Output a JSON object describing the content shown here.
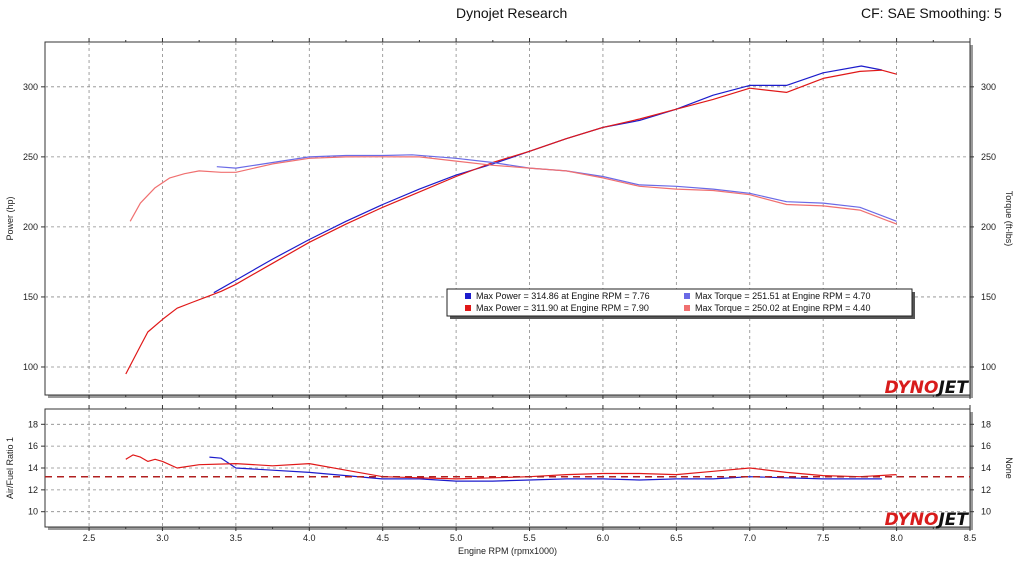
{
  "header": {
    "title": "Dynojet Research",
    "right": "CF: SAE Smoothing: 5"
  },
  "colors": {
    "run1": "#1c1ccc",
    "run2": "#e01818",
    "torque1": "#6a6ae6",
    "torque2": "#f07070",
    "target_line": "#b02020",
    "logo_red": "#d81c1c",
    "logo_black": "#111111"
  },
  "logo": {
    "text_red": "DYNO",
    "text_black": "JET"
  },
  "chart_data": [
    {
      "type": "line",
      "name": "power-torque",
      "xlim": [
        2.2,
        8.5
      ],
      "ylim": [
        80,
        332
      ],
      "y_ticks": [
        100,
        150,
        200,
        250,
        300
      ],
      "ylabel": "Power (hp)",
      "y2label": "Torque (ft-lbs)",
      "y2_ticks": [
        100,
        150,
        200,
        250,
        300
      ],
      "grid": true,
      "legend": {
        "placement": "center-right",
        "entries": [
          {
            "color": "#1c1ccc",
            "text": "Max Power = 314.86 at Engine RPM = 7.76"
          },
          {
            "color": "#6a6ae6",
            "text": "Max Torque = 251.51 at Engine RPM = 4.70"
          },
          {
            "color": "#e01818",
            "text": "Max Power = 311.90 at Engine RPM = 7.90"
          },
          {
            "color": "#f07070",
            "text": "Max Torque = 250.02 at Engine RPM = 4.40"
          }
        ]
      },
      "series": [
        {
          "color": "#1c1ccc",
          "x": [
            3.35,
            3.5,
            3.75,
            4.0,
            4.25,
            4.5,
            4.75,
            5.0,
            5.25,
            5.5,
            5.75,
            6.0,
            6.25,
            6.5,
            6.75,
            7.0,
            7.25,
            7.5,
            7.76,
            7.9
          ],
          "y": [
            153,
            162,
            177,
            191,
            204,
            216,
            227,
            237,
            245,
            254,
            263,
            271,
            276,
            284,
            294,
            301,
            301,
            310,
            314.9,
            312
          ]
        },
        {
          "color": "#e01818",
          "x": [
            2.75,
            2.8,
            2.85,
            2.9,
            3.0,
            3.1,
            3.2,
            3.3,
            3.4,
            3.5,
            3.75,
            4.0,
            4.25,
            4.5,
            4.75,
            5.0,
            5.25,
            5.5,
            5.75,
            6.0,
            6.25,
            6.5,
            6.75,
            7.0,
            7.25,
            7.5,
            7.75,
            7.9,
            8.0
          ],
          "y": [
            95,
            105,
            115,
            125,
            134,
            142,
            146,
            150,
            154,
            159,
            174,
            189,
            202,
            214,
            225,
            236,
            246,
            254,
            263,
            271,
            277,
            284,
            291,
            299,
            296,
            306,
            311,
            311.9,
            309
          ]
        },
        {
          "color": "#6a6ae6",
          "x": [
            3.37,
            3.5,
            3.75,
            4.0,
            4.25,
            4.5,
            4.7,
            5.0,
            5.25,
            5.5,
            5.75,
            6.0,
            6.25,
            6.5,
            6.75,
            7.0,
            7.25,
            7.5,
            7.75,
            8.0
          ],
          "y": [
            243,
            242,
            246,
            250,
            251,
            251,
            251.5,
            249,
            246,
            242,
            240,
            236,
            230,
            229,
            227,
            224,
            218,
            217,
            214,
            204
          ]
        },
        {
          "color": "#f07070",
          "x": [
            2.78,
            2.85,
            2.95,
            3.05,
            3.15,
            3.25,
            3.4,
            3.5,
            3.75,
            4.0,
            4.25,
            4.4,
            4.75,
            5.0,
            5.25,
            5.5,
            5.75,
            6.0,
            6.25,
            6.5,
            6.75,
            7.0,
            7.25,
            7.5,
            7.75,
            8.0
          ],
          "y": [
            204,
            217,
            228,
            235,
            238,
            240,
            239,
            239,
            245,
            249,
            250,
            250.02,
            250,
            247,
            244,
            242,
            240,
            235,
            229,
            227,
            226,
            223,
            216,
            215,
            212,
            202
          ]
        }
      ]
    },
    {
      "type": "line",
      "name": "air-fuel",
      "xlim": [
        2.2,
        8.5
      ],
      "ylim": [
        8.6,
        19.4
      ],
      "y_ticks": [
        10,
        12,
        14,
        16,
        18
      ],
      "ylabel": "Air/Fuel Ratio 1",
      "y2label": "None",
      "y2_ticks": [
        10,
        12,
        14,
        16,
        18
      ],
      "xlabel": "Engine RPM (rpmx1000)",
      "x_ticks": [
        2.5,
        3.0,
        3.5,
        4.0,
        4.5,
        5.0,
        5.5,
        6.0,
        6.5,
        7.0,
        7.5,
        8.0,
        8.5
      ],
      "reference_line": 13.2,
      "grid": true,
      "series": [
        {
          "color": "#1c1ccc",
          "x": [
            3.32,
            3.4,
            3.5,
            3.75,
            4.0,
            4.25,
            4.5,
            4.75,
            5.0,
            5.25,
            5.5,
            5.75,
            6.0,
            6.25,
            6.5,
            6.75,
            7.0,
            7.25,
            7.5,
            7.9
          ],
          "y": [
            15,
            14.9,
            14.0,
            13.8,
            13.6,
            13.3,
            13.0,
            13.0,
            12.8,
            12.8,
            12.9,
            13.0,
            13.0,
            12.9,
            13.0,
            13.0,
            13.2,
            13.1,
            13.0,
            13.0
          ]
        },
        {
          "color": "#e01818",
          "x": [
            2.75,
            2.8,
            2.85,
            2.9,
            2.95,
            3.0,
            3.1,
            3.25,
            3.5,
            3.75,
            4.0,
            4.25,
            4.5,
            4.75,
            5.0,
            5.25,
            5.5,
            5.75,
            6.0,
            6.25,
            6.5,
            6.75,
            7.0,
            7.25,
            7.5,
            7.75,
            8.0
          ],
          "y": [
            14.8,
            15.2,
            15.0,
            14.6,
            14.8,
            14.6,
            14.0,
            14.3,
            14.4,
            14.2,
            14.4,
            13.8,
            13.2,
            13.1,
            13.0,
            13.1,
            13.2,
            13.4,
            13.5,
            13.5,
            13.4,
            13.7,
            14.0,
            13.6,
            13.3,
            13.2,
            13.4
          ]
        }
      ]
    }
  ]
}
